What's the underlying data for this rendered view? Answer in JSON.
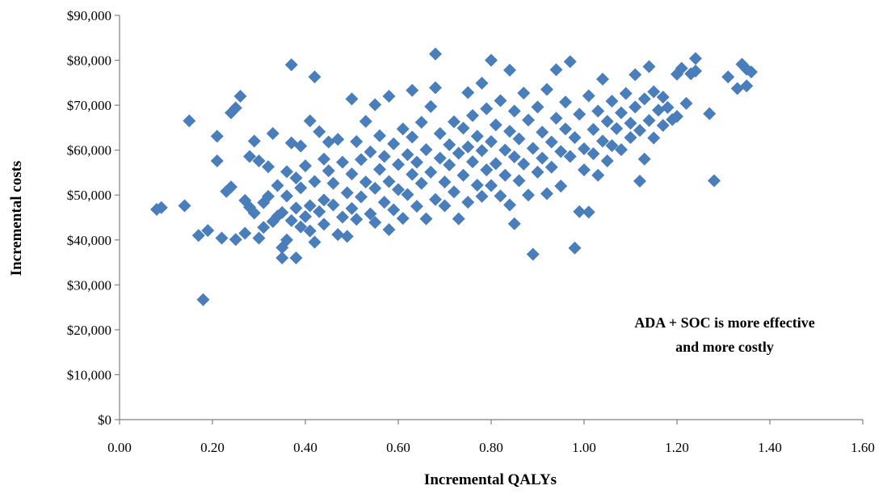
{
  "chart_data": {
    "type": "scatter",
    "title": "",
    "xlabel": "Incremental QALYs",
    "ylabel": "Incremental costs",
    "xlim": [
      0,
      1.6
    ],
    "ylim": [
      0,
      90000
    ],
    "x_ticks": [
      0,
      0.2,
      0.4,
      0.6,
      0.8,
      1.0,
      1.2,
      1.4,
      1.6
    ],
    "x_tick_labels": [
      "0.00",
      "0.20",
      "0.40",
      "0.60",
      "0.80",
      "1.00",
      "1.20",
      "1.40",
      "1.60"
    ],
    "y_ticks": [
      0,
      10000,
      20000,
      30000,
      40000,
      50000,
      60000,
      70000,
      80000,
      90000
    ],
    "y_tick_labels": [
      "$0",
      "$10,000",
      "$20,000",
      "$30,000",
      "$40,000",
      "$50,000",
      "$60,000",
      "$70,000",
      "$80,000",
      "$90,000"
    ],
    "grid": false,
    "marker": "diamond",
    "marker_color": "#4a7ebb",
    "annotation": [
      "ADA + SOC is more effective",
      "and more costly"
    ],
    "series": [
      {
        "values": [
          [
            0.08,
            46800
          ],
          [
            0.09,
            47200
          ],
          [
            0.14,
            47600
          ],
          [
            0.15,
            66500
          ],
          [
            0.17,
            41000
          ],
          [
            0.18,
            26700
          ],
          [
            0.19,
            42100
          ],
          [
            0.21,
            57600
          ],
          [
            0.21,
            63100
          ],
          [
            0.22,
            40400
          ],
          [
            0.23,
            50800
          ],
          [
            0.24,
            51800
          ],
          [
            0.24,
            68300
          ],
          [
            0.25,
            40100
          ],
          [
            0.25,
            69400
          ],
          [
            0.26,
            72000
          ],
          [
            0.27,
            41500
          ],
          [
            0.27,
            48800
          ],
          [
            0.28,
            58600
          ],
          [
            0.28,
            47300
          ],
          [
            0.29,
            62000
          ],
          [
            0.29,
            46000
          ],
          [
            0.3,
            57600
          ],
          [
            0.3,
            40400
          ],
          [
            0.31,
            42800
          ],
          [
            0.31,
            48300
          ],
          [
            0.32,
            56300
          ],
          [
            0.32,
            49700
          ],
          [
            0.33,
            63700
          ],
          [
            0.33,
            44100
          ],
          [
            0.34,
            45300
          ],
          [
            0.34,
            52100
          ],
          [
            0.35,
            36000
          ],
          [
            0.35,
            38300
          ],
          [
            0.35,
            46100
          ],
          [
            0.36,
            55200
          ],
          [
            0.36,
            40000
          ],
          [
            0.36,
            49800
          ],
          [
            0.37,
            79000
          ],
          [
            0.37,
            61600
          ],
          [
            0.37,
            44300
          ],
          [
            0.38,
            36000
          ],
          [
            0.38,
            53800
          ],
          [
            0.38,
            47100
          ],
          [
            0.39,
            60900
          ],
          [
            0.39,
            42900
          ],
          [
            0.39,
            51600
          ],
          [
            0.4,
            45200
          ],
          [
            0.4,
            56500
          ],
          [
            0.41,
            47600
          ],
          [
            0.41,
            66500
          ],
          [
            0.41,
            42000
          ],
          [
            0.42,
            76300
          ],
          [
            0.42,
            39500
          ],
          [
            0.42,
            53000
          ],
          [
            0.43,
            64100
          ],
          [
            0.43,
            46300
          ],
          [
            0.44,
            48900
          ],
          [
            0.44,
            58000
          ],
          [
            0.44,
            43500
          ],
          [
            0.45,
            55400
          ],
          [
            0.45,
            61800
          ],
          [
            0.46,
            47800
          ],
          [
            0.46,
            52600
          ],
          [
            0.47,
            41200
          ],
          [
            0.47,
            62400
          ],
          [
            0.48,
            45100
          ],
          [
            0.48,
            57300
          ],
          [
            0.49,
            50500
          ],
          [
            0.49,
            40800
          ],
          [
            0.5,
            71400
          ],
          [
            0.5,
            54700
          ],
          [
            0.5,
            47000
          ],
          [
            0.51,
            61900
          ],
          [
            0.51,
            44600
          ],
          [
            0.52,
            57900
          ],
          [
            0.52,
            49600
          ],
          [
            0.53,
            52900
          ],
          [
            0.53,
            66400
          ],
          [
            0.54,
            45800
          ],
          [
            0.54,
            59600
          ],
          [
            0.55,
            70100
          ],
          [
            0.55,
            51500
          ],
          [
            0.55,
            43900
          ],
          [
            0.56,
            55700
          ],
          [
            0.56,
            63200
          ],
          [
            0.57,
            48400
          ],
          [
            0.57,
            58600
          ],
          [
            0.58,
            72000
          ],
          [
            0.58,
            53000
          ],
          [
            0.58,
            42300
          ],
          [
            0.59,
            61400
          ],
          [
            0.59,
            46700
          ],
          [
            0.6,
            56800
          ],
          [
            0.6,
            51200
          ],
          [
            0.61,
            64700
          ],
          [
            0.61,
            44800
          ],
          [
            0.62,
            59000
          ],
          [
            0.62,
            50100
          ],
          [
            0.63,
            73300
          ],
          [
            0.63,
            54600
          ],
          [
            0.63,
            62900
          ],
          [
            0.64,
            47500
          ],
          [
            0.64,
            57300
          ],
          [
            0.65,
            52600
          ],
          [
            0.65,
            66200
          ],
          [
            0.66,
            44700
          ],
          [
            0.66,
            60100
          ],
          [
            0.67,
            55100
          ],
          [
            0.67,
            69700
          ],
          [
            0.68,
            81400
          ],
          [
            0.68,
            49000
          ],
          [
            0.68,
            73900
          ],
          [
            0.69,
            58200
          ],
          [
            0.69,
            63700
          ],
          [
            0.7,
            52900
          ],
          [
            0.7,
            47600
          ],
          [
            0.71,
            61200
          ],
          [
            0.71,
            56700
          ],
          [
            0.72,
            66300
          ],
          [
            0.72,
            50700
          ],
          [
            0.73,
            59300
          ],
          [
            0.73,
            44700
          ],
          [
            0.74,
            64900
          ],
          [
            0.74,
            54400
          ],
          [
            0.75,
            72800
          ],
          [
            0.75,
            60700
          ],
          [
            0.75,
            48400
          ],
          [
            0.76,
            57400
          ],
          [
            0.76,
            67700
          ],
          [
            0.77,
            52200
          ],
          [
            0.77,
            63100
          ],
          [
            0.78,
            74900
          ],
          [
            0.78,
            49700
          ],
          [
            0.78,
            59900
          ],
          [
            0.79,
            55600
          ],
          [
            0.79,
            69200
          ],
          [
            0.8,
            80000
          ],
          [
            0.8,
            61900
          ],
          [
            0.8,
            52100
          ],
          [
            0.81,
            65600
          ],
          [
            0.81,
            57000
          ],
          [
            0.82,
            49800
          ],
          [
            0.82,
            71000
          ],
          [
            0.83,
            60000
          ],
          [
            0.83,
            54400
          ],
          [
            0.84,
            77800
          ],
          [
            0.84,
            64200
          ],
          [
            0.84,
            47800
          ],
          [
            0.85,
            58500
          ],
          [
            0.85,
            68700
          ],
          [
            0.85,
            43600
          ],
          [
            0.86,
            53200
          ],
          [
            0.86,
            62500
          ],
          [
            0.87,
            72700
          ],
          [
            0.87,
            56900
          ],
          [
            0.88,
            50000
          ],
          [
            0.88,
            66700
          ],
          [
            0.89,
            36800
          ],
          [
            0.89,
            60400
          ],
          [
            0.9,
            55100
          ],
          [
            0.9,
            69600
          ],
          [
            0.91,
            64000
          ],
          [
            0.91,
            58200
          ],
          [
            0.92,
            50300
          ],
          [
            0.92,
            73500
          ],
          [
            0.93,
            61800
          ],
          [
            0.93,
            56200
          ],
          [
            0.94,
            77900
          ],
          [
            0.94,
            67100
          ],
          [
            0.95,
            59700
          ],
          [
            0.95,
            52000
          ],
          [
            0.96,
            64700
          ],
          [
            0.96,
            70700
          ],
          [
            0.97,
            79700
          ],
          [
            0.97,
            58600
          ],
          [
            0.98,
            38200
          ],
          [
            0.98,
            62800
          ],
          [
            0.99,
            46300
          ],
          [
            0.99,
            68000
          ],
          [
            1.0,
            60300
          ],
          [
            1.0,
            55600
          ],
          [
            1.01,
            46200
          ],
          [
            1.01,
            72100
          ],
          [
            1.02,
            64600
          ],
          [
            1.02,
            59200
          ],
          [
            1.03,
            54400
          ],
          [
            1.03,
            68700
          ],
          [
            1.04,
            62000
          ],
          [
            1.04,
            75800
          ],
          [
            1.05,
            57600
          ],
          [
            1.05,
            66400
          ],
          [
            1.06,
            70900
          ],
          [
            1.06,
            61000
          ],
          [
            1.07,
            64800
          ],
          [
            1.08,
            68300
          ],
          [
            1.08,
            60100
          ],
          [
            1.09,
            72600
          ],
          [
            1.1,
            66000
          ],
          [
            1.1,
            62800
          ],
          [
            1.11,
            76800
          ],
          [
            1.11,
            69600
          ],
          [
            1.12,
            53100
          ],
          [
            1.12,
            64400
          ],
          [
            1.13,
            71400
          ],
          [
            1.13,
            58000
          ],
          [
            1.14,
            66600
          ],
          [
            1.14,
            78600
          ],
          [
            1.15,
            62700
          ],
          [
            1.15,
            73000
          ],
          [
            1.16,
            68900
          ],
          [
            1.17,
            65500
          ],
          [
            1.17,
            71800
          ],
          [
            1.18,
            69500
          ],
          [
            1.19,
            66800
          ],
          [
            1.2,
            76900
          ],
          [
            1.2,
            67500
          ],
          [
            1.21,
            78200
          ],
          [
            1.22,
            70400
          ],
          [
            1.23,
            77000
          ],
          [
            1.24,
            80400
          ],
          [
            1.24,
            77600
          ],
          [
            1.27,
            68100
          ],
          [
            1.28,
            53200
          ],
          [
            1.31,
            76300
          ],
          [
            1.33,
            73700
          ],
          [
            1.34,
            79100
          ],
          [
            1.35,
            74300
          ],
          [
            1.35,
            78000
          ],
          [
            1.36,
            77400
          ]
        ]
      }
    ]
  }
}
